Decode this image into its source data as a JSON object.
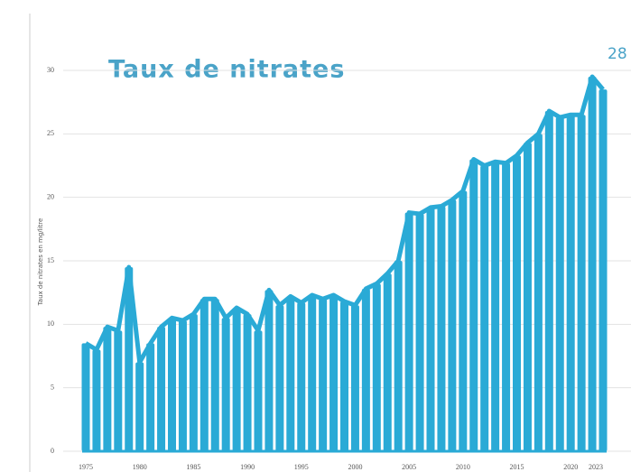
{
  "chart_data": {
    "type": "bar",
    "title": "Taux de nitrates",
    "page_number": "28",
    "y_label": "Taux de nitrates en mg/litre",
    "x": [
      1975,
      1976,
      1977,
      1978,
      1979,
      1980,
      1981,
      1982,
      1983,
      1984,
      1985,
      1986,
      1987,
      1988,
      1989,
      1990,
      1991,
      1992,
      1993,
      1994,
      1995,
      1996,
      1997,
      1998,
      1999,
      2000,
      2001,
      2002,
      2003,
      2004,
      2005,
      2006,
      2007,
      2008,
      2009,
      2010,
      2011,
      2012,
      2013,
      2014,
      2015,
      2016,
      2017,
      2018,
      2019,
      2020,
      2021,
      2022,
      2023
    ],
    "values": [
      8.5,
      8.0,
      9.8,
      9.5,
      14.5,
      7.0,
      8.5,
      9.8,
      10.5,
      10.3,
      10.8,
      12.0,
      12.0,
      10.5,
      11.3,
      10.8,
      9.5,
      12.7,
      11.5,
      12.2,
      11.7,
      12.3,
      12.0,
      12.3,
      11.8,
      11.5,
      12.8,
      13.2,
      14.0,
      15.0,
      18.8,
      18.7,
      19.2,
      19.3,
      19.8,
      20.5,
      23.0,
      22.5,
      22.8,
      22.7,
      23.3,
      24.3,
      25.0,
      26.8,
      26.3,
      26.5,
      26.5,
      29.5,
      28.5
    ],
    "color": "#2aaad6",
    "xlim": [
      1975,
      2023
    ],
    "xticks": [
      1975,
      1980,
      1985,
      1990,
      1995,
      2000,
      2005,
      2010,
      2015,
      2020,
      2023
    ],
    "ylim": [
      0,
      30
    ],
    "yticks": [
      0,
      5,
      10,
      15,
      20,
      25,
      30
    ],
    "grid": true
  }
}
